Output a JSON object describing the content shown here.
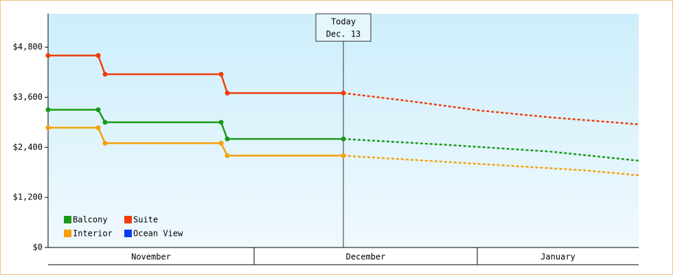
{
  "chart_data": {
    "type": "line",
    "xlim": [
      0,
      86
    ],
    "ylim": [
      0,
      5600
    ],
    "yticks": [
      {
        "value": 0,
        "label": "$0"
      },
      {
        "value": 1200,
        "label": "$1,200"
      },
      {
        "value": 2400,
        "label": "$2,400"
      },
      {
        "value": 3600,
        "label": "$3,600"
      },
      {
        "value": 4800,
        "label": "$4,800"
      }
    ],
    "month_bands": [
      {
        "label": "November",
        "start": 0,
        "end": 30
      },
      {
        "label": "December",
        "start": 30,
        "end": 62.5
      },
      {
        "label": "January",
        "start": 62.5,
        "end": 86
      }
    ],
    "annotation": {
      "x": 43,
      "lines": [
        "Today",
        "Dec. 13"
      ]
    },
    "series": [
      {
        "name": "Balcony",
        "color": "#1a9a1a",
        "x": [
          0,
          7.3,
          8.3,
          25.2,
          26.1,
          43
        ],
        "values": [
          3300,
          3300,
          3000,
          3000,
          2600,
          2600
        ],
        "forecast_x": [
          43,
          58,
          73,
          86
        ],
        "forecast_values": [
          2600,
          2460,
          2300,
          2080
        ]
      },
      {
        "name": "Suite",
        "color": "#f03c0a",
        "x": [
          0,
          7.3,
          8.3,
          25.2,
          26.1,
          43
        ],
        "values": [
          4600,
          4600,
          4150,
          4150,
          3700,
          3700
        ],
        "forecast_x": [
          43,
          53,
          63,
          73,
          86
        ],
        "forecast_values": [
          3700,
          3500,
          3280,
          3120,
          2950
        ]
      },
      {
        "name": "Interior",
        "color": "#f5a00a",
        "x": [
          0,
          7.3,
          8.3,
          25.2,
          26.1,
          43
        ],
        "values": [
          2870,
          2870,
          2500,
          2500,
          2200,
          2200
        ],
        "forecast_x": [
          43,
          63,
          78,
          86
        ],
        "forecast_values": [
          2200,
          2000,
          1850,
          1730
        ]
      },
      {
        "name": "Ocean View",
        "color": "#0a3cf0",
        "x": [],
        "values": [],
        "forecast_x": [],
        "forecast_values": []
      }
    ]
  }
}
